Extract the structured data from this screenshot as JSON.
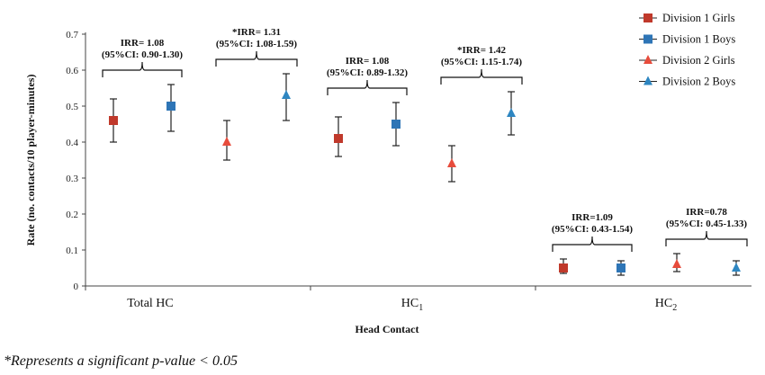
{
  "chart_data": {
    "type": "scatter",
    "xlabel": "Head Contact",
    "ylabel": "Rate (no. contacts/10 player-minutes)",
    "ylim": [
      0,
      0.7
    ],
    "yticks": [
      "0",
      "0.1",
      "0.2",
      "0.3",
      "0.4",
      "0.5",
      "0.6",
      "0.7"
    ],
    "grid": false,
    "legend_position": "top-right",
    "categories": [
      {
        "base": "Total HC",
        "sub": ""
      },
      {
        "base": "HC",
        "sub": "1"
      },
      {
        "base": "HC",
        "sub": "2"
      }
    ],
    "series": [
      {
        "name": "Division 1 Girls",
        "marker": "square",
        "color": "#c0392b",
        "values": [
          0.46,
          0.41,
          0.05
        ],
        "lower": [
          0.4,
          0.36,
          0.035
        ],
        "upper": [
          0.52,
          0.47,
          0.075
        ]
      },
      {
        "name": "Division 1 Boys",
        "marker": "square",
        "color": "#2e75b6",
        "values": [
          0.5,
          0.45,
          0.05
        ],
        "lower": [
          0.43,
          0.39,
          0.03
        ],
        "upper": [
          0.56,
          0.51,
          0.07
        ]
      },
      {
        "name": "Division 2 Girls",
        "marker": "triangle",
        "color": "#e74c3c",
        "values": [
          0.4,
          0.34,
          0.06
        ],
        "lower": [
          0.35,
          0.29,
          0.04
        ],
        "upper": [
          0.46,
          0.39,
          0.09
        ]
      },
      {
        "name": "Division 2 Boys",
        "marker": "triangle",
        "color": "#2e86c1",
        "values": [
          0.53,
          0.48,
          0.05
        ],
        "lower": [
          0.46,
          0.42,
          0.03
        ],
        "upper": [
          0.59,
          0.54,
          0.07
        ]
      }
    ],
    "annotations": [
      {
        "line1": "IRR= 1.08",
        "line2": "(95%CI: 0.90-1.30)",
        "category": 0,
        "division": 1
      },
      {
        "line1": "*IRR= 1.31",
        "line2": "(95%CI: 1.08-1.59)",
        "category": 0,
        "division": 2
      },
      {
        "line1": "IRR= 1.08",
        "line2": "(95%CI: 0.89-1.32)",
        "category": 1,
        "division": 1
      },
      {
        "line1": "*IRR= 1.42",
        "line2": "(95%CI: 1.15-1.74)",
        "category": 1,
        "division": 2
      },
      {
        "line1": "IRR=1.09",
        "line2": "(95%CI: 0.43-1.54)",
        "category": 2,
        "division": 1
      },
      {
        "line1": "IRR=0.78",
        "line2": "(95%CI: 0.45-1.33)",
        "category": 2,
        "division": 2
      }
    ]
  },
  "footnote": "*Represents a significant p-value < 0.05"
}
